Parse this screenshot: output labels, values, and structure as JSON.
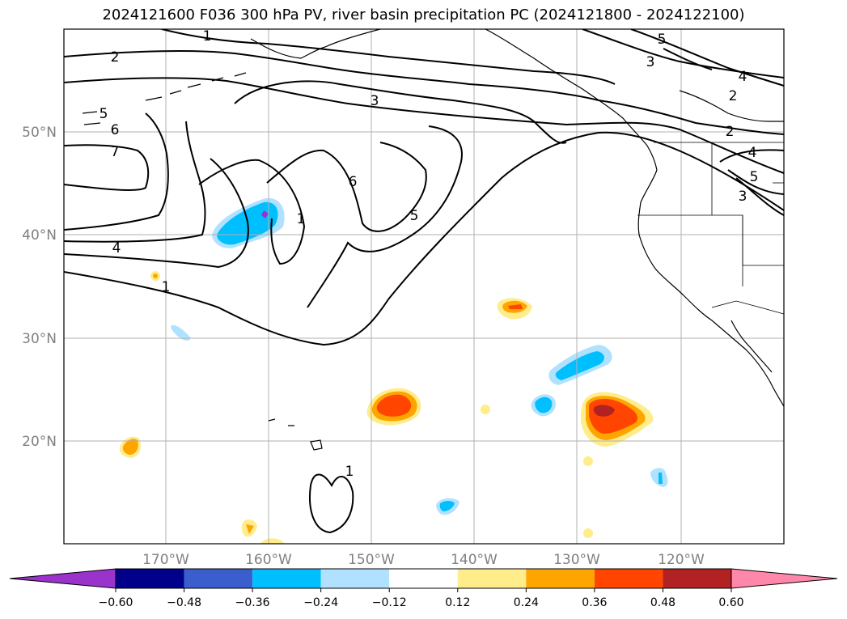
{
  "title": "2024121600 F036 300 hPa PV, river basin precipitation PC (2024121800 - 2024122100)",
  "map": {
    "lat_labels": [
      "50°N",
      "40°N",
      "30°N",
      "20°N"
    ],
    "lon_labels": [
      "170°W",
      "160°W",
      "150°W",
      "140°W",
      "130°W",
      "120°W"
    ],
    "grid": true,
    "colors": {
      "coast": "#000000",
      "grid": "#b0b0b0",
      "contour": "#000000"
    }
  },
  "colorbar": {
    "tick_labels": [
      "−0.60",
      "−0.48",
      "−0.36",
      "−0.24",
      "−0.12",
      "0.12",
      "0.24",
      "0.36",
      "0.48",
      "0.60"
    ],
    "colors": [
      "#9933cc",
      "#00008b",
      "#3a5fcd",
      "#00bfff",
      "#b0e2ff",
      "#ffffff",
      "#ffec8b",
      "#ffa500",
      "#ff4500",
      "#b22222",
      "#ff88aa"
    ]
  },
  "contour_labels": [
    {
      "text": "1"
    },
    {
      "text": "2"
    },
    {
      "text": "5"
    },
    {
      "text": "6"
    },
    {
      "text": "7"
    },
    {
      "text": "3"
    },
    {
      "text": "6"
    },
    {
      "text": "5"
    },
    {
      "text": "1"
    },
    {
      "text": "4"
    },
    {
      "text": "1"
    },
    {
      "text": "5"
    },
    {
      "text": "3"
    },
    {
      "text": "4"
    },
    {
      "text": "2"
    },
    {
      "text": "2"
    },
    {
      "text": "4"
    },
    {
      "text": "5"
    },
    {
      "text": "3"
    },
    {
      "text": "1"
    }
  ],
  "colors": {
    "blob_light_blue": "#b0e2ff",
    "blob_blue": "#00bfff",
    "blob_purple": "#9933cc",
    "blob_yellow": "#ffec8b",
    "blob_orange": "#ffa500",
    "blob_red": "#ff4500",
    "blob_darkred": "#b22222"
  }
}
